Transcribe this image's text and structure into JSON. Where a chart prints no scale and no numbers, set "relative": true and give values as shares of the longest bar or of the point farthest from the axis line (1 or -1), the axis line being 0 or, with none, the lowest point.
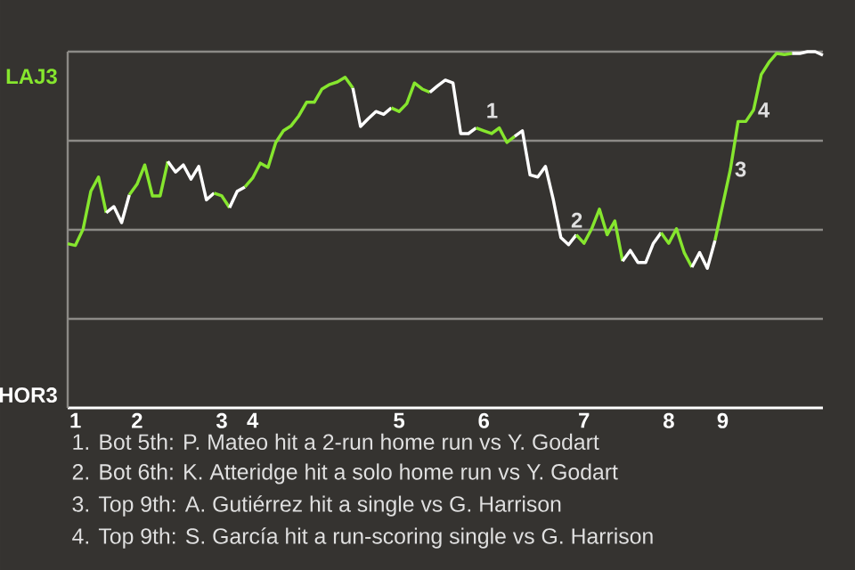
{
  "chart_data": {
    "type": "line",
    "relative": true,
    "grid": "y",
    "categories": [
      null,
      "1",
      null,
      null,
      null,
      null,
      null,
      null,
      null,
      "2",
      null,
      null,
      null,
      null,
      null,
      null,
      null,
      null,
      null,
      null,
      "3",
      null,
      null,
      null,
      "4",
      null,
      null,
      null,
      null,
      null,
      null,
      null,
      null,
      null,
      null,
      null,
      null,
      null,
      null,
      null,
      null,
      null,
      null,
      "5",
      null,
      null,
      null,
      null,
      null,
      null,
      null,
      null,
      null,
      null,
      "6",
      null,
      null,
      null,
      null,
      null,
      null,
      null,
      null,
      null,
      null,
      null,
      null,
      "7",
      null,
      null,
      null,
      null,
      null,
      null,
      null,
      null,
      null,
      null,
      "8",
      null,
      null,
      null,
      null,
      null,
      null,
      "9",
      null,
      null,
      null,
      null,
      null,
      null,
      null,
      null,
      null,
      null,
      null,
      null,
      null
    ],
    "series": [
      {
        "name": "LAJ3",
        "color": "#86e62e",
        "values": [
          0.461,
          0.456,
          0.502,
          0.608,
          0.648,
          0.548,
          null,
          null,
          null,
          null,
          null,
          null,
          null,
          null,
          null,
          null,
          null,
          null,
          null,
          null,
          null,
          null,
          null,
          null,
          null,
          null,
          null,
          null,
          null,
          null,
          null,
          null,
          null,
          null,
          null,
          null,
          null,
          null,
          null,
          null,
          null,
          null,
          null,
          null,
          null,
          null,
          null,
          null,
          null,
          null,
          null,
          null,
          null,
          null,
          null,
          null,
          null,
          null,
          null,
          null,
          null,
          null,
          null,
          null,
          null,
          null,
          null,
          null,
          null,
          null,
          null,
          null,
          null,
          null,
          null,
          null,
          null,
          null,
          null,
          null,
          null,
          null,
          null,
          null,
          null,
          null,
          null,
          null,
          null,
          null,
          null,
          null,
          null,
          null,
          null,
          null,
          null,
          null,
          null
        ]
      },
      {
        "name": "HOR3",
        "color": "#ffffff",
        "values": [
          null,
          null,
          null,
          null,
          null,
          0.548,
          0.565,
          0.52,
          0.598,
          null,
          null,
          null,
          null,
          null,
          null,
          null,
          null,
          null,
          null,
          null,
          null,
          null,
          null,
          null,
          null,
          null,
          null,
          null,
          null,
          null,
          null,
          null,
          null,
          null,
          null,
          null,
          null,
          null,
          null,
          null,
          null,
          null,
          null,
          null,
          null,
          null,
          null,
          null,
          null,
          null,
          null,
          null,
          null,
          null,
          null,
          null,
          null,
          null,
          null,
          null,
          null,
          null,
          null,
          null,
          null,
          null,
          null,
          null,
          null,
          null,
          null,
          null,
          null,
          null,
          null,
          null,
          null,
          null,
          null,
          null,
          null,
          null,
          null,
          null,
          null,
          null,
          null,
          null,
          null,
          null,
          null,
          null,
          null,
          null,
          null,
          null,
          null,
          null,
          null
        ]
      },
      {
        "color": "#86e62e",
        "values": [
          null,
          null,
          null,
          null,
          null,
          null,
          null,
          null,
          0.598,
          0.628,
          0.682,
          0.595,
          0.595,
          0.692,
          null,
          null,
          null,
          null,
          null,
          null,
          null,
          null,
          null,
          null,
          null,
          null,
          null,
          null,
          null,
          null,
          null,
          null,
          null,
          null,
          null,
          null,
          null,
          null,
          null,
          null,
          null,
          null,
          null,
          null,
          null,
          null,
          null,
          null,
          null,
          null,
          null,
          null,
          null,
          null,
          null,
          null,
          null,
          null,
          null,
          null,
          null,
          null,
          null,
          null,
          null,
          null,
          null,
          null,
          null,
          null,
          null,
          null,
          null,
          null,
          null,
          null,
          null,
          null,
          null,
          null,
          null,
          null,
          null,
          null,
          null,
          null,
          null,
          null,
          null,
          null,
          null,
          null,
          null,
          null,
          null,
          null,
          null,
          null,
          null
        ]
      },
      {
        "color": "#ffffff",
        "values": [
          null,
          null,
          null,
          null,
          null,
          null,
          null,
          null,
          null,
          null,
          null,
          null,
          null,
          0.692,
          0.662,
          0.682,
          0.642,
          0.678,
          0.584,
          0.603,
          null,
          null,
          null,
          null,
          null,
          null,
          null,
          null,
          null,
          null,
          null,
          null,
          null,
          null,
          null,
          null,
          null,
          null,
          null,
          null,
          null,
          null,
          null,
          null,
          null,
          null,
          null,
          null,
          null,
          null,
          null,
          null,
          null,
          null,
          null,
          null,
          null,
          null,
          null,
          null,
          null,
          null,
          null,
          null,
          null,
          null,
          null,
          null,
          null,
          null,
          null,
          null,
          null,
          null,
          null,
          null,
          null,
          null,
          null,
          null,
          null,
          null,
          null,
          null,
          null,
          null,
          null,
          null,
          null,
          null,
          null,
          null,
          null,
          null,
          null,
          null,
          null,
          null,
          null
        ]
      },
      {
        "color": "#86e62e",
        "values": [
          null,
          null,
          null,
          null,
          null,
          null,
          null,
          null,
          null,
          null,
          null,
          null,
          null,
          null,
          null,
          null,
          null,
          null,
          null,
          0.603,
          0.595,
          0.562,
          null,
          null,
          null,
          null,
          null,
          null,
          null,
          null,
          null,
          null,
          null,
          null,
          null,
          null,
          null,
          null,
          null,
          null,
          null,
          null,
          null,
          null,
          null,
          null,
          null,
          null,
          null,
          null,
          null,
          null,
          null,
          null,
          null,
          null,
          null,
          null,
          null,
          null,
          null,
          null,
          null,
          null,
          null,
          null,
          null,
          null,
          null,
          null,
          null,
          null,
          null,
          null,
          null,
          null,
          null,
          null,
          null,
          null,
          null,
          null,
          null,
          null,
          null,
          null,
          null,
          null,
          null,
          null,
          null,
          null,
          null,
          null,
          null,
          null,
          null,
          null,
          null
        ]
      },
      {
        "color": "#ffffff",
        "values": [
          null,
          null,
          null,
          null,
          null,
          null,
          null,
          null,
          null,
          null,
          null,
          null,
          null,
          null,
          null,
          null,
          null,
          null,
          null,
          null,
          null,
          0.562,
          0.608,
          0.62,
          null,
          null,
          null,
          null,
          null,
          null,
          null,
          null,
          null,
          null,
          null,
          null,
          null,
          null,
          null,
          null,
          null,
          null,
          null,
          null,
          null,
          null,
          null,
          null,
          null,
          null,
          null,
          null,
          null,
          null,
          null,
          null,
          null,
          null,
          null,
          null,
          null,
          null,
          null,
          null,
          null,
          null,
          null,
          null,
          null,
          null,
          null,
          null,
          null,
          null,
          null,
          null,
          null,
          null,
          null,
          null,
          null,
          null,
          null,
          null,
          null,
          null,
          null,
          null,
          null,
          null,
          null,
          null,
          null,
          null,
          null,
          null,
          null,
          null,
          null
        ]
      },
      {
        "color": "#86e62e",
        "values": [
          null,
          null,
          null,
          null,
          null,
          null,
          null,
          null,
          null,
          null,
          null,
          null,
          null,
          null,
          null,
          null,
          null,
          null,
          null,
          null,
          null,
          null,
          null,
          0.62,
          0.645,
          0.687,
          0.675,
          0.745,
          0.778,
          0.792,
          0.82,
          0.858,
          0.858,
          0.895,
          0.908,
          0.915,
          0.928,
          0.898,
          null,
          null,
          null,
          null,
          null,
          null,
          null,
          null,
          null,
          null,
          null,
          null,
          null,
          null,
          null,
          null,
          null,
          null,
          null,
          null,
          null,
          null,
          null,
          null,
          null,
          null,
          null,
          null,
          null,
          null,
          null,
          null,
          null,
          null,
          null,
          null,
          null,
          null,
          null,
          null,
          null,
          null,
          null,
          null,
          null,
          null,
          null,
          null,
          null,
          null,
          null,
          null,
          null,
          null,
          null,
          null,
          null,
          null,
          null,
          null,
          null
        ]
      },
      {
        "color": "#ffffff",
        "values": [
          null,
          null,
          null,
          null,
          null,
          null,
          null,
          null,
          null,
          null,
          null,
          null,
          null,
          null,
          null,
          null,
          null,
          null,
          null,
          null,
          null,
          null,
          null,
          null,
          null,
          null,
          null,
          null,
          null,
          null,
          null,
          null,
          null,
          null,
          null,
          null,
          null,
          0.898,
          0.79,
          0.812,
          0.832,
          0.824,
          0.842,
          null,
          null,
          null,
          null,
          null,
          null,
          null,
          null,
          null,
          null,
          null,
          null,
          null,
          null,
          null,
          null,
          null,
          null,
          null,
          null,
          null,
          null,
          null,
          null,
          null,
          null,
          null,
          null,
          null,
          null,
          null,
          null,
          null,
          null,
          null,
          null,
          null,
          null,
          null,
          null,
          null,
          null,
          null,
          null,
          null,
          null,
          null,
          null,
          null,
          null,
          null,
          null,
          null,
          null,
          null,
          null
        ]
      },
      {
        "color": "#86e62e",
        "values": [
          null,
          null,
          null,
          null,
          null,
          null,
          null,
          null,
          null,
          null,
          null,
          null,
          null,
          null,
          null,
          null,
          null,
          null,
          null,
          null,
          null,
          null,
          null,
          null,
          null,
          null,
          null,
          null,
          null,
          null,
          null,
          null,
          null,
          null,
          null,
          null,
          null,
          null,
          null,
          null,
          null,
          null,
          0.842,
          0.832,
          0.854,
          0.912,
          0.895,
          0.886,
          null,
          null,
          null,
          null,
          null,
          null,
          null,
          null,
          null,
          null,
          null,
          null,
          null,
          null,
          null,
          null,
          null,
          null,
          null,
          null,
          null,
          null,
          null,
          null,
          null,
          null,
          null,
          null,
          null,
          null,
          null,
          null,
          null,
          null,
          null,
          null,
          null,
          null,
          null,
          null,
          null,
          null,
          null,
          null,
          null,
          null,
          null,
          null,
          null,
          null,
          null
        ]
      },
      {
        "color": "#ffffff",
        "values": [
          null,
          null,
          null,
          null,
          null,
          null,
          null,
          null,
          null,
          null,
          null,
          null,
          null,
          null,
          null,
          null,
          null,
          null,
          null,
          null,
          null,
          null,
          null,
          null,
          null,
          null,
          null,
          null,
          null,
          null,
          null,
          null,
          null,
          null,
          null,
          null,
          null,
          null,
          null,
          null,
          null,
          null,
          null,
          null,
          null,
          null,
          null,
          0.886,
          0.904,
          0.92,
          0.912,
          0.77,
          0.77,
          0.786,
          null,
          null,
          null,
          null,
          null,
          null,
          null,
          null,
          null,
          null,
          null,
          null,
          null,
          null,
          null,
          null,
          null,
          null,
          null,
          null,
          null,
          null,
          null,
          null,
          null,
          null,
          null,
          null,
          null,
          null,
          null,
          null,
          null,
          null,
          null,
          null,
          null,
          null,
          null,
          null,
          null,
          null,
          null,
          null,
          null
        ]
      },
      {
        "color": "#86e62e",
        "values": [
          null,
          null,
          null,
          null,
          null,
          null,
          null,
          null,
          null,
          null,
          null,
          null,
          null,
          null,
          null,
          null,
          null,
          null,
          null,
          null,
          null,
          null,
          null,
          null,
          null,
          null,
          null,
          null,
          null,
          null,
          null,
          null,
          null,
          null,
          null,
          null,
          null,
          null,
          null,
          null,
          null,
          null,
          null,
          null,
          null,
          null,
          null,
          null,
          null,
          null,
          null,
          null,
          null,
          0.786,
          0.778,
          0.77,
          0.786,
          0.745,
          0.762,
          null,
          null,
          null,
          null,
          null,
          null,
          null,
          null,
          null,
          null,
          null,
          null,
          null,
          null,
          null,
          null,
          null,
          null,
          null,
          null,
          null,
          null,
          null,
          null,
          null,
          null,
          null,
          null,
          null,
          null,
          null,
          null,
          null,
          null,
          null,
          null,
          null,
          null,
          null,
          null
        ]
      },
      {
        "color": "#ffffff",
        "values": [
          null,
          null,
          null,
          null,
          null,
          null,
          null,
          null,
          null,
          null,
          null,
          null,
          null,
          null,
          null,
          null,
          null,
          null,
          null,
          null,
          null,
          null,
          null,
          null,
          null,
          null,
          null,
          null,
          null,
          null,
          null,
          null,
          null,
          null,
          null,
          null,
          null,
          null,
          null,
          null,
          null,
          null,
          null,
          null,
          null,
          null,
          null,
          null,
          null,
          null,
          null,
          null,
          null,
          null,
          null,
          null,
          null,
          null,
          0.762,
          0.778,
          0.654,
          0.648,
          0.678,
          0.586,
          0.478,
          0.458,
          0.486,
          null,
          null,
          null,
          null,
          null,
          null,
          null,
          null,
          null,
          null,
          null,
          null,
          null,
          null,
          null,
          null,
          null,
          null,
          null,
          null,
          null,
          null,
          null,
          null,
          null,
          null,
          null,
          null,
          null,
          null,
          null,
          null
        ]
      },
      {
        "color": "#86e62e",
        "values": [
          null,
          null,
          null,
          null,
          null,
          null,
          null,
          null,
          null,
          null,
          null,
          null,
          null,
          null,
          null,
          null,
          null,
          null,
          null,
          null,
          null,
          null,
          null,
          null,
          null,
          null,
          null,
          null,
          null,
          null,
          null,
          null,
          null,
          null,
          null,
          null,
          null,
          null,
          null,
          null,
          null,
          null,
          null,
          null,
          null,
          null,
          null,
          null,
          null,
          null,
          null,
          null,
          null,
          null,
          null,
          null,
          null,
          null,
          null,
          null,
          null,
          null,
          null,
          null,
          null,
          null,
          0.486,
          0.462,
          0.503,
          0.558,
          0.486,
          0.525,
          0.412,
          null,
          null,
          null,
          null,
          null,
          null,
          null,
          null,
          null,
          null,
          null,
          null,
          null,
          null,
          null,
          null,
          null,
          null,
          null,
          null,
          null,
          null,
          null,
          null,
          null,
          null
        ]
      },
      {
        "color": "#ffffff",
        "values": [
          null,
          null,
          null,
          null,
          null,
          null,
          null,
          null,
          null,
          null,
          null,
          null,
          null,
          null,
          null,
          null,
          null,
          null,
          null,
          null,
          null,
          null,
          null,
          null,
          null,
          null,
          null,
          null,
          null,
          null,
          null,
          null,
          null,
          null,
          null,
          null,
          null,
          null,
          null,
          null,
          null,
          null,
          null,
          null,
          null,
          null,
          null,
          null,
          null,
          null,
          null,
          null,
          null,
          null,
          null,
          null,
          null,
          null,
          null,
          null,
          null,
          null,
          null,
          null,
          null,
          null,
          null,
          null,
          null,
          null,
          null,
          null,
          0.412,
          0.442,
          0.408,
          0.408,
          0.462,
          0.492,
          null,
          null,
          null,
          null,
          null,
          null,
          null,
          null,
          null,
          null,
          null,
          null,
          null,
          null,
          null,
          null,
          null,
          null,
          null,
          null,
          null
        ]
      },
      {
        "color": "#86e62e",
        "values": [
          null,
          null,
          null,
          null,
          null,
          null,
          null,
          null,
          null,
          null,
          null,
          null,
          null,
          null,
          null,
          null,
          null,
          null,
          null,
          null,
          null,
          null,
          null,
          null,
          null,
          null,
          null,
          null,
          null,
          null,
          null,
          null,
          null,
          null,
          null,
          null,
          null,
          null,
          null,
          null,
          null,
          null,
          null,
          null,
          null,
          null,
          null,
          null,
          null,
          null,
          null,
          null,
          null,
          null,
          null,
          null,
          null,
          null,
          null,
          null,
          null,
          null,
          null,
          null,
          null,
          null,
          null,
          null,
          null,
          null,
          null,
          null,
          null,
          null,
          null,
          null,
          null,
          0.492,
          0.462,
          0.503,
          0.436,
          0.395,
          null,
          null,
          null,
          null,
          null,
          null,
          null,
          null,
          null,
          null,
          null,
          null,
          null,
          null,
          null,
          null,
          null
        ]
      },
      {
        "color": "#ffffff",
        "values": [
          null,
          null,
          null,
          null,
          null,
          null,
          null,
          null,
          null,
          null,
          null,
          null,
          null,
          null,
          null,
          null,
          null,
          null,
          null,
          null,
          null,
          null,
          null,
          null,
          null,
          null,
          null,
          null,
          null,
          null,
          null,
          null,
          null,
          null,
          null,
          null,
          null,
          null,
          null,
          null,
          null,
          null,
          null,
          null,
          null,
          null,
          null,
          null,
          null,
          null,
          null,
          null,
          null,
          null,
          null,
          null,
          null,
          null,
          null,
          null,
          null,
          null,
          null,
          null,
          null,
          null,
          null,
          null,
          null,
          null,
          null,
          null,
          null,
          null,
          null,
          null,
          null,
          null,
          null,
          null,
          null,
          0.395,
          0.436,
          0.392,
          0.47,
          null,
          null,
          null,
          null,
          null,
          null,
          null,
          null,
          null,
          null,
          null,
          null,
          null,
          null
        ]
      },
      {
        "color": "#86e62e",
        "values": [
          null,
          null,
          null,
          null,
          null,
          null,
          null,
          null,
          null,
          null,
          null,
          null,
          null,
          null,
          null,
          null,
          null,
          null,
          null,
          null,
          null,
          null,
          null,
          null,
          null,
          null,
          null,
          null,
          null,
          null,
          null,
          null,
          null,
          null,
          null,
          null,
          null,
          null,
          null,
          null,
          null,
          null,
          null,
          null,
          null,
          null,
          null,
          null,
          null,
          null,
          null,
          null,
          null,
          null,
          null,
          null,
          null,
          null,
          null,
          null,
          null,
          null,
          null,
          null,
          null,
          null,
          null,
          null,
          null,
          null,
          null,
          null,
          null,
          null,
          null,
          null,
          null,
          null,
          null,
          null,
          null,
          null,
          null,
          null,
          0.47,
          0.57,
          0.67,
          0.804,
          0.804,
          0.836,
          0.936,
          0.97,
          0.995,
          0.992,
          0.995,
          null,
          null,
          null,
          null
        ]
      },
      {
        "color": "#ffffff",
        "values": [
          null,
          null,
          null,
          null,
          null,
          null,
          null,
          null,
          null,
          null,
          null,
          null,
          null,
          null,
          null,
          null,
          null,
          null,
          null,
          null,
          null,
          null,
          null,
          null,
          null,
          null,
          null,
          null,
          null,
          null,
          null,
          null,
          null,
          null,
          null,
          null,
          null,
          null,
          null,
          null,
          null,
          null,
          null,
          null,
          null,
          null,
          null,
          null,
          null,
          null,
          null,
          null,
          null,
          null,
          null,
          null,
          null,
          null,
          null,
          null,
          null,
          null,
          null,
          null,
          null,
          null,
          null,
          null,
          null,
          null,
          null,
          null,
          null,
          null,
          null,
          null,
          null,
          null,
          null,
          null,
          null,
          null,
          null,
          null,
          null,
          null,
          null,
          null,
          null,
          null,
          null,
          null,
          null,
          null,
          0.995,
          0.995,
          1.0,
          1.0,
          0.99
        ]
      }
    ],
    "annotations": [
      {
        "text": "1",
        "y": 0.786
      },
      {
        "text": "2",
        "y": 0.478
      },
      {
        "text": "3",
        "y": 0.67
      },
      {
        "text": "4",
        "y": 0.836
      },
      "1. Bot 5th: P. Mateo hit a 2-run home run vs Y. Godart",
      "2. Bot 6th: K. Atteridge hit a solo home run vs Y. Godart",
      "3. Top 9th: A. Gutiérrez hit a single vs G. Harrison",
      "4. Top 9th: S. García hit a run-scoring single vs G. Harrison"
    ]
  }
}
